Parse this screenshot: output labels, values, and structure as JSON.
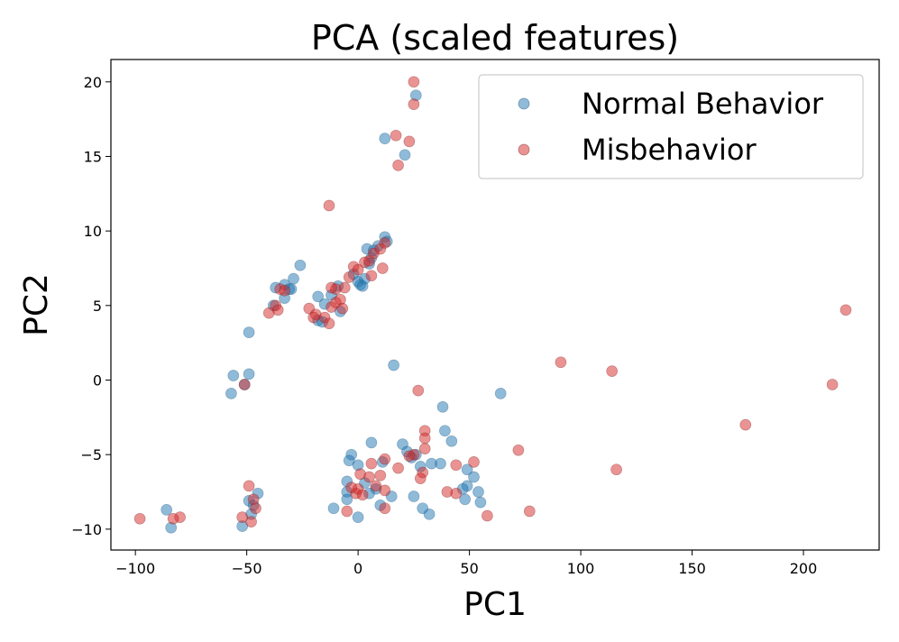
{
  "chart_data": {
    "type": "scatter",
    "title": "PCA (scaled features)",
    "xlabel": "PC1",
    "ylabel": "PC2",
    "xlim": [
      -111,
      234
    ],
    "ylim": [
      -11.4,
      21.5
    ],
    "xticks": [
      -100,
      -50,
      0,
      50,
      100,
      150,
      200
    ],
    "yticks": [
      -10,
      -5,
      0,
      5,
      10,
      15,
      20
    ],
    "xtick_labels": [
      "−100",
      "−50",
      "0",
      "50",
      "100",
      "150",
      "200"
    ],
    "ytick_labels": [
      "−10",
      "−5",
      "0",
      "5",
      "10",
      "15",
      "20"
    ],
    "grid": false,
    "legend_position": "upper right",
    "series": [
      {
        "name": "Normal Behavior",
        "color": "#1f77b4",
        "points": [
          [
            26,
            19.1
          ],
          [
            12,
            16.2
          ],
          [
            21,
            15.1
          ],
          [
            -26,
            7.7
          ],
          [
            -29,
            6.8
          ],
          [
            -30,
            6.1
          ],
          [
            -33,
            6.4
          ],
          [
            -33,
            5.5
          ],
          [
            -31,
            6.1
          ],
          [
            -37,
            6.2
          ],
          [
            -38,
            5.0
          ],
          [
            -18,
            5.6
          ],
          [
            -15,
            5.1
          ],
          [
            -18,
            4.0
          ],
          [
            -16,
            3.9
          ],
          [
            -12,
            5.7
          ],
          [
            -8,
            4.6
          ],
          [
            -9,
            6.3
          ],
          [
            -2,
            7.1
          ],
          [
            0,
            6.6
          ],
          [
            1,
            6.4
          ],
          [
            2,
            6.3
          ],
          [
            3,
            6.8
          ],
          [
            4,
            8.8
          ],
          [
            6,
            8.2
          ],
          [
            9,
            9.0
          ],
          [
            12,
            9.6
          ],
          [
            13,
            9.3
          ],
          [
            5,
            7.8
          ],
          [
            7,
            8.7
          ],
          [
            -49,
            3.2
          ],
          [
            -56,
            0.3
          ],
          [
            -49,
            0.4
          ],
          [
            -51,
            -0.3
          ],
          [
            -57,
            -0.9
          ],
          [
            16,
            1.0
          ],
          [
            38,
            -1.8
          ],
          [
            64,
            -0.9
          ],
          [
            39,
            -3.4
          ],
          [
            42,
            -4.1
          ],
          [
            20,
            -4.3
          ],
          [
            22,
            -4.8
          ],
          [
            -3,
            -5.0
          ],
          [
            -4,
            -5.4
          ],
          [
            0,
            -5.7
          ],
          [
            6,
            -4.2
          ],
          [
            11,
            -5.5
          ],
          [
            24,
            -5.2
          ],
          [
            26,
            -5.0
          ],
          [
            28,
            -5.8
          ],
          [
            33,
            -5.6
          ],
          [
            37,
            -5.6
          ],
          [
            49,
            -6.0
          ],
          [
            52,
            -6.5
          ],
          [
            49,
            -7.1
          ],
          [
            47,
            -7.3
          ],
          [
            54,
            -7.5
          ],
          [
            48,
            -8.0
          ],
          [
            55,
            -8.2
          ],
          [
            25,
            -7.8
          ],
          [
            29,
            -8.6
          ],
          [
            32,
            -9.0
          ],
          [
            15,
            -7.8
          ],
          [
            8,
            -7.3
          ],
          [
            10,
            -8.4
          ],
          [
            5,
            -7.6
          ],
          [
            3,
            -6.9
          ],
          [
            -5,
            -6.8
          ],
          [
            -5,
            -7.5
          ],
          [
            -5,
            -8.0
          ],
          [
            -11,
            -8.6
          ],
          [
            0,
            -9.2
          ],
          [
            -49,
            -8.1
          ],
          [
            -47,
            -8.4
          ],
          [
            -48,
            -9.0
          ],
          [
            -52,
            -9.8
          ],
          [
            -45,
            -7.6
          ],
          [
            -84,
            -9.9
          ],
          [
            -86,
            -8.7
          ]
        ]
      },
      {
        "name": "Misbehavior",
        "color": "#d62728",
        "points": [
          [
            25,
            20.0
          ],
          [
            25,
            18.5
          ],
          [
            17,
            16.4
          ],
          [
            23,
            16.0
          ],
          [
            18,
            14.4
          ],
          [
            -13,
            11.7
          ],
          [
            -35,
            6.1
          ],
          [
            -33,
            6.0
          ],
          [
            -37,
            5.0
          ],
          [
            -36,
            4.7
          ],
          [
            -40,
            4.5
          ],
          [
            -22,
            4.8
          ],
          [
            -19,
            4.4
          ],
          [
            -20,
            4.2
          ],
          [
            -15,
            4.2
          ],
          [
            -13,
            3.8
          ],
          [
            -12,
            4.9
          ],
          [
            -10,
            5.2
          ],
          [
            -8,
            5.4
          ],
          [
            -7,
            4.8
          ],
          [
            -10,
            6.1
          ],
          [
            -6,
            6.2
          ],
          [
            -12,
            6.2
          ],
          [
            -2,
            7.6
          ],
          [
            3,
            7.9
          ],
          [
            5,
            8.0
          ],
          [
            7,
            8.5
          ],
          [
            10,
            8.8
          ],
          [
            12,
            9.2
          ],
          [
            11,
            7.5
          ],
          [
            6,
            7.0
          ],
          [
            0,
            7.4
          ],
          [
            -4,
            6.9
          ],
          [
            -51,
            -0.3
          ],
          [
            27,
            -0.7
          ],
          [
            91,
            1.2
          ],
          [
            114,
            0.6
          ],
          [
            219,
            4.7
          ],
          [
            213,
            -0.3
          ],
          [
            174,
            -3.0
          ],
          [
            116,
            -6.0
          ],
          [
            72,
            -4.7
          ],
          [
            30,
            -3.4
          ],
          [
            30,
            -3.9
          ],
          [
            30,
            -4.6
          ],
          [
            25,
            -5.0
          ],
          [
            23,
            -5.1
          ],
          [
            29,
            -6.2
          ],
          [
            28,
            -6.6
          ],
          [
            44,
            -5.7
          ],
          [
            52,
            -5.5
          ],
          [
            40,
            -7.5
          ],
          [
            44,
            -7.6
          ],
          [
            58,
            -9.1
          ],
          [
            77,
            -8.8
          ],
          [
            18,
            -5.9
          ],
          [
            12,
            -5.3
          ],
          [
            6,
            -5.6
          ],
          [
            1,
            -6.3
          ],
          [
            5,
            -6.5
          ],
          [
            10,
            -6.4
          ],
          [
            -1,
            -7.6
          ],
          [
            0,
            -7.3
          ],
          [
            2,
            -7.7
          ],
          [
            8,
            -7.1
          ],
          [
            12,
            -7.4
          ],
          [
            -3,
            -7.2
          ],
          [
            -5,
            -8.8
          ],
          [
            12,
            -8.6
          ],
          [
            -49,
            -7.1
          ],
          [
            -47,
            -8.0
          ],
          [
            -48,
            -9.5
          ],
          [
            -46,
            -8.6
          ],
          [
            -52,
            -9.2
          ],
          [
            -80,
            -9.2
          ],
          [
            -83,
            -9.3
          ],
          [
            -98,
            -9.3
          ]
        ]
      }
    ]
  }
}
